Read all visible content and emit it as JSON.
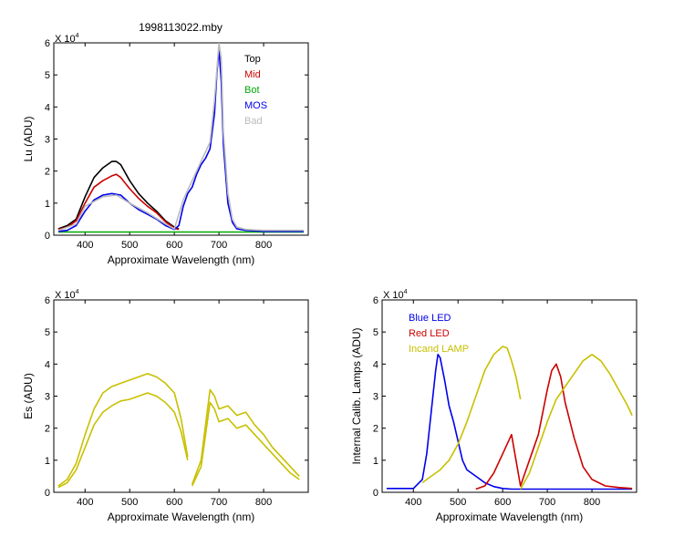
{
  "figure": {
    "title": "1998113022.mby",
    "exponent_base": "X 10",
    "exponent_power": "4"
  },
  "colors": {
    "black": "#000000",
    "red": "#cc0000",
    "green": "#00aa00",
    "blue": "#0000ee",
    "gray": "#bbbbbb",
    "olive": "#c8c000",
    "axis": "#000000"
  },
  "chart_data": [
    {
      "id": "lu",
      "type": "line",
      "title": "1998113022.mby",
      "xlabel": "Approximate Wavelength (nm)",
      "ylabel": "Lu (ADU)",
      "y_multiplier": "X 10^4",
      "xlim": [
        330,
        900
      ],
      "ylim": [
        0,
        6
      ],
      "xticks": [
        400,
        500,
        600,
        700,
        800
      ],
      "yticks": [
        0,
        1,
        2,
        3,
        4,
        5,
        6
      ],
      "grid": false,
      "legend_position": "top-right",
      "series": [
        {
          "name": "Top",
          "color": "#000000",
          "x": [
            340,
            360,
            380,
            400,
            420,
            440,
            460,
            470,
            480,
            500,
            520,
            540,
            560,
            580,
            600,
            610
          ],
          "y": [
            0.2,
            0.3,
            0.5,
            1.2,
            1.8,
            2.1,
            2.3,
            2.3,
            2.2,
            1.7,
            1.3,
            1.0,
            0.75,
            0.45,
            0.25,
            0.2
          ]
        },
        {
          "name": "Mid",
          "color": "#cc0000",
          "x": [
            340,
            360,
            380,
            400,
            420,
            440,
            460,
            470,
            480,
            500,
            520,
            540,
            560,
            580,
            600,
            610
          ],
          "y": [
            0.18,
            0.25,
            0.45,
            1.0,
            1.5,
            1.7,
            1.85,
            1.9,
            1.8,
            1.45,
            1.15,
            0.9,
            0.7,
            0.42,
            0.22,
            0.18
          ]
        },
        {
          "name": "Bot",
          "color": "#00aa00",
          "x": [
            340,
            400,
            500,
            600,
            700,
            800,
            890
          ],
          "y": [
            0.1,
            0.1,
            0.1,
            0.1,
            0.1,
            0.1,
            0.1
          ]
        },
        {
          "name": "MOS",
          "color": "#0000ee",
          "x": [
            340,
            360,
            380,
            400,
            420,
            440,
            460,
            480,
            500,
            520,
            540,
            560,
            580,
            600,
            610,
            620,
            630,
            640,
            650,
            660,
            670,
            680,
            690,
            695,
            700,
            705,
            710,
            720,
            730,
            740,
            760,
            800,
            890
          ],
          "y": [
            0.12,
            0.15,
            0.3,
            0.75,
            1.1,
            1.25,
            1.3,
            1.25,
            1.0,
            0.8,
            0.65,
            0.5,
            0.3,
            0.18,
            0.3,
            0.9,
            1.3,
            1.5,
            1.9,
            2.2,
            2.4,
            2.7,
            3.8,
            5.0,
            5.8,
            4.8,
            2.8,
            1.0,
            0.4,
            0.2,
            0.15,
            0.12,
            0.12
          ]
        },
        {
          "name": "Bad",
          "color": "#bbbbbb",
          "x": [
            340,
            380,
            400,
            440,
            470,
            500,
            540,
            580,
            600,
            620,
            640,
            660,
            680,
            690,
            700,
            705,
            710,
            720,
            730,
            740,
            760,
            800,
            890
          ],
          "y": [
            0.15,
            0.35,
            0.9,
            1.2,
            1.25,
            1.0,
            0.7,
            0.35,
            0.2,
            1.1,
            1.7,
            2.3,
            2.9,
            4.2,
            6.0,
            5.5,
            3.2,
            1.3,
            0.5,
            0.25,
            0.18,
            0.15,
            0.15
          ]
        }
      ]
    },
    {
      "id": "es",
      "type": "line",
      "title": "",
      "xlabel": "Approximate Wavelength (nm)",
      "ylabel": "Es  (ADU)",
      "y_multiplier": "X 10^4",
      "xlim": [
        330,
        900
      ],
      "ylim": [
        0,
        6
      ],
      "xticks": [
        400,
        500,
        600,
        700,
        800
      ],
      "yticks": [
        0,
        1,
        2,
        3,
        4,
        5,
        6
      ],
      "grid": false,
      "series": [
        {
          "color": "#c8c000",
          "x": [
            340,
            360,
            380,
            400,
            420,
            440,
            460,
            480,
            500,
            520,
            540,
            560,
            580,
            600,
            615,
            630
          ],
          "y": [
            0.15,
            0.3,
            0.7,
            1.4,
            2.1,
            2.5,
            2.7,
            2.85,
            2.9,
            3.0,
            3.1,
            3.0,
            2.8,
            2.5,
            1.9,
            1.0
          ]
        },
        {
          "color": "#c8c000",
          "x": [
            340,
            360,
            380,
            400,
            420,
            440,
            460,
            480,
            500,
            520,
            540,
            560,
            580,
            600,
            615,
            630
          ],
          "y": [
            0.2,
            0.4,
            0.9,
            1.8,
            2.6,
            3.1,
            3.3,
            3.4,
            3.5,
            3.6,
            3.7,
            3.6,
            3.4,
            3.1,
            2.3,
            1.1
          ]
        },
        {
          "color": "#c8c000",
          "x": [
            640,
            660,
            670,
            680,
            690,
            700,
            720,
            740,
            760,
            780,
            800,
            820,
            840,
            860,
            880
          ],
          "y": [
            0.2,
            0.8,
            1.8,
            2.8,
            2.6,
            2.2,
            2.3,
            2.0,
            2.1,
            1.8,
            1.5,
            1.2,
            0.9,
            0.6,
            0.4
          ]
        },
        {
          "color": "#c8c000",
          "x": [
            640,
            660,
            670,
            680,
            690,
            700,
            720,
            740,
            760,
            780,
            800,
            820,
            840,
            860,
            880
          ],
          "y": [
            0.25,
            1.0,
            2.1,
            3.2,
            3.0,
            2.6,
            2.7,
            2.4,
            2.5,
            2.1,
            1.8,
            1.4,
            1.1,
            0.8,
            0.5
          ]
        }
      ]
    },
    {
      "id": "lamps",
      "type": "line",
      "title": "",
      "xlabel": "Approximate Wavelength (nm)",
      "ylabel": "Internal Calib. Lamps (ADU)",
      "y_multiplier": "X 10^4",
      "xlim": [
        330,
        900
      ],
      "ylim": [
        0,
        6
      ],
      "xticks": [
        400,
        500,
        600,
        700,
        800
      ],
      "yticks": [
        0,
        1,
        2,
        3,
        4,
        5,
        6
      ],
      "grid": false,
      "legend_position": "top-left",
      "series": [
        {
          "name": "Blue LED",
          "color": "#0000ee",
          "x": [
            340,
            400,
            420,
            430,
            440,
            450,
            455,
            460,
            470,
            480,
            490,
            500,
            510,
            520,
            540,
            560,
            580,
            600,
            620,
            640,
            700,
            800,
            890
          ],
          "y": [
            0.12,
            0.12,
            0.4,
            1.2,
            2.5,
            3.8,
            4.3,
            4.2,
            3.5,
            2.7,
            2.2,
            1.6,
            1.0,
            0.7,
            0.5,
            0.3,
            0.18,
            0.12,
            0.1,
            0.1,
            0.1,
            0.1,
            0.1
          ]
        },
        {
          "name": "Red LED",
          "color": "#cc0000",
          "x": [
            540,
            560,
            580,
            600,
            620,
            640,
            660,
            680,
            700,
            710,
            720,
            730,
            740,
            760,
            780,
            800,
            830,
            860,
            890
          ],
          "y": [
            0.1,
            0.2,
            0.6,
            1.2,
            1.8,
            0.2,
            1.0,
            1.8,
            3.2,
            3.8,
            4.0,
            3.6,
            2.8,
            1.7,
            0.8,
            0.4,
            0.2,
            0.15,
            0.12
          ]
        },
        {
          "name": "Incand LAMP",
          "color": "#c8c000",
          "x": [
            420,
            440,
            460,
            480,
            500,
            520,
            540,
            560,
            580,
            600,
            610,
            620,
            630,
            640
          ],
          "y": [
            0.3,
            0.5,
            0.7,
            1.0,
            1.5,
            2.2,
            3.0,
            3.8,
            4.3,
            4.55,
            4.5,
            4.1,
            3.6,
            2.9
          ]
        },
        {
          "name": "",
          "color": "#c8c000",
          "x": [
            640,
            660,
            680,
            700,
            720,
            740,
            760,
            780,
            800,
            820,
            840,
            860,
            880,
            890
          ],
          "y": [
            0.1,
            0.6,
            1.4,
            2.2,
            2.9,
            3.3,
            3.7,
            4.1,
            4.3,
            4.1,
            3.7,
            3.2,
            2.7,
            2.4
          ]
        }
      ]
    }
  ]
}
